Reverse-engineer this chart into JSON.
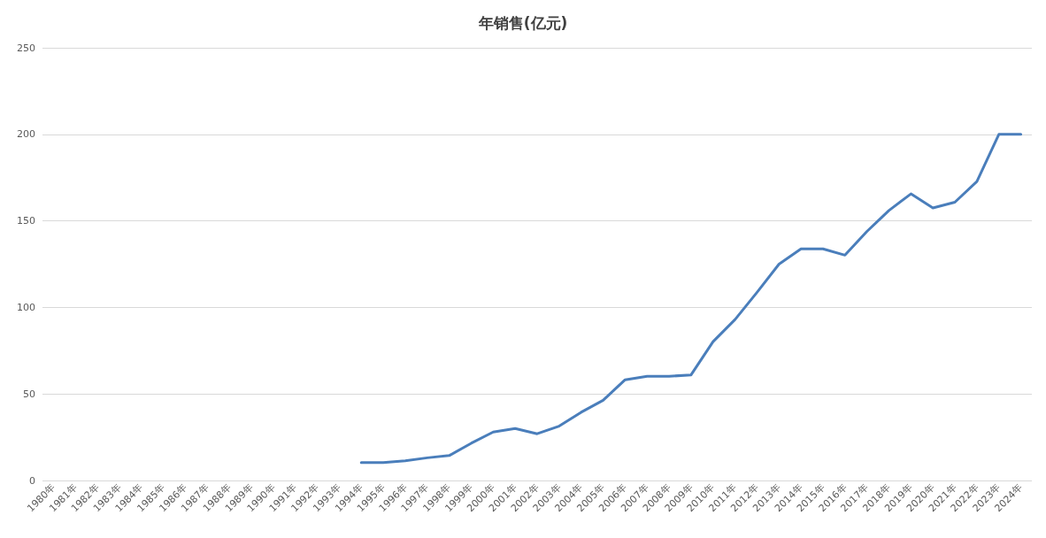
{
  "chart_data": {
    "type": "line",
    "title": "年销售(亿元)",
    "categories": [
      "1980年",
      "1981年",
      "1982年",
      "1983年",
      "1984年",
      "1985年",
      "1986年",
      "1987年",
      "1988年",
      "1989年",
      "1990年",
      "1991年",
      "1992年",
      "1993年",
      "1994年",
      "1995年",
      "1996年",
      "1997年",
      "1998年",
      "1999年",
      "2000年",
      "2001年",
      "2002年",
      "2003年",
      "2004年",
      "2005年",
      "2006年",
      "2007年",
      "2008年",
      "2009年",
      "2010年",
      "2011年",
      "2012年",
      "2013年",
      "2014年",
      "2015年",
      "2016年",
      "2017年",
      "2018年",
      "2019年",
      "2020年",
      "2021年",
      "2022年",
      "2023年",
      "2024年"
    ],
    "series": [
      {
        "color": "#4a7ebb",
        "values": [
          null,
          null,
          null,
          null,
          null,
          null,
          null,
          null,
          null,
          null,
          null,
          null,
          null,
          null,
          10.4,
          10.4,
          11.4,
          13.1,
          14.4,
          21.5,
          28,
          30,
          27,
          31.4,
          39.4,
          46.3,
          58.2,
          60.2,
          60.2,
          61,
          80.2,
          93,
          108.7,
          125,
          133.8,
          133.8,
          130.2,
          143.9,
          156,
          165.6,
          157.5,
          160.8,
          172.7,
          200,
          200
        ]
      }
    ],
    "ylim": [
      0,
      250
    ],
    "yticks": [
      0,
      50,
      100,
      150,
      200,
      250
    ],
    "grid": "y",
    "marker": "none",
    "line_style": "solid"
  }
}
